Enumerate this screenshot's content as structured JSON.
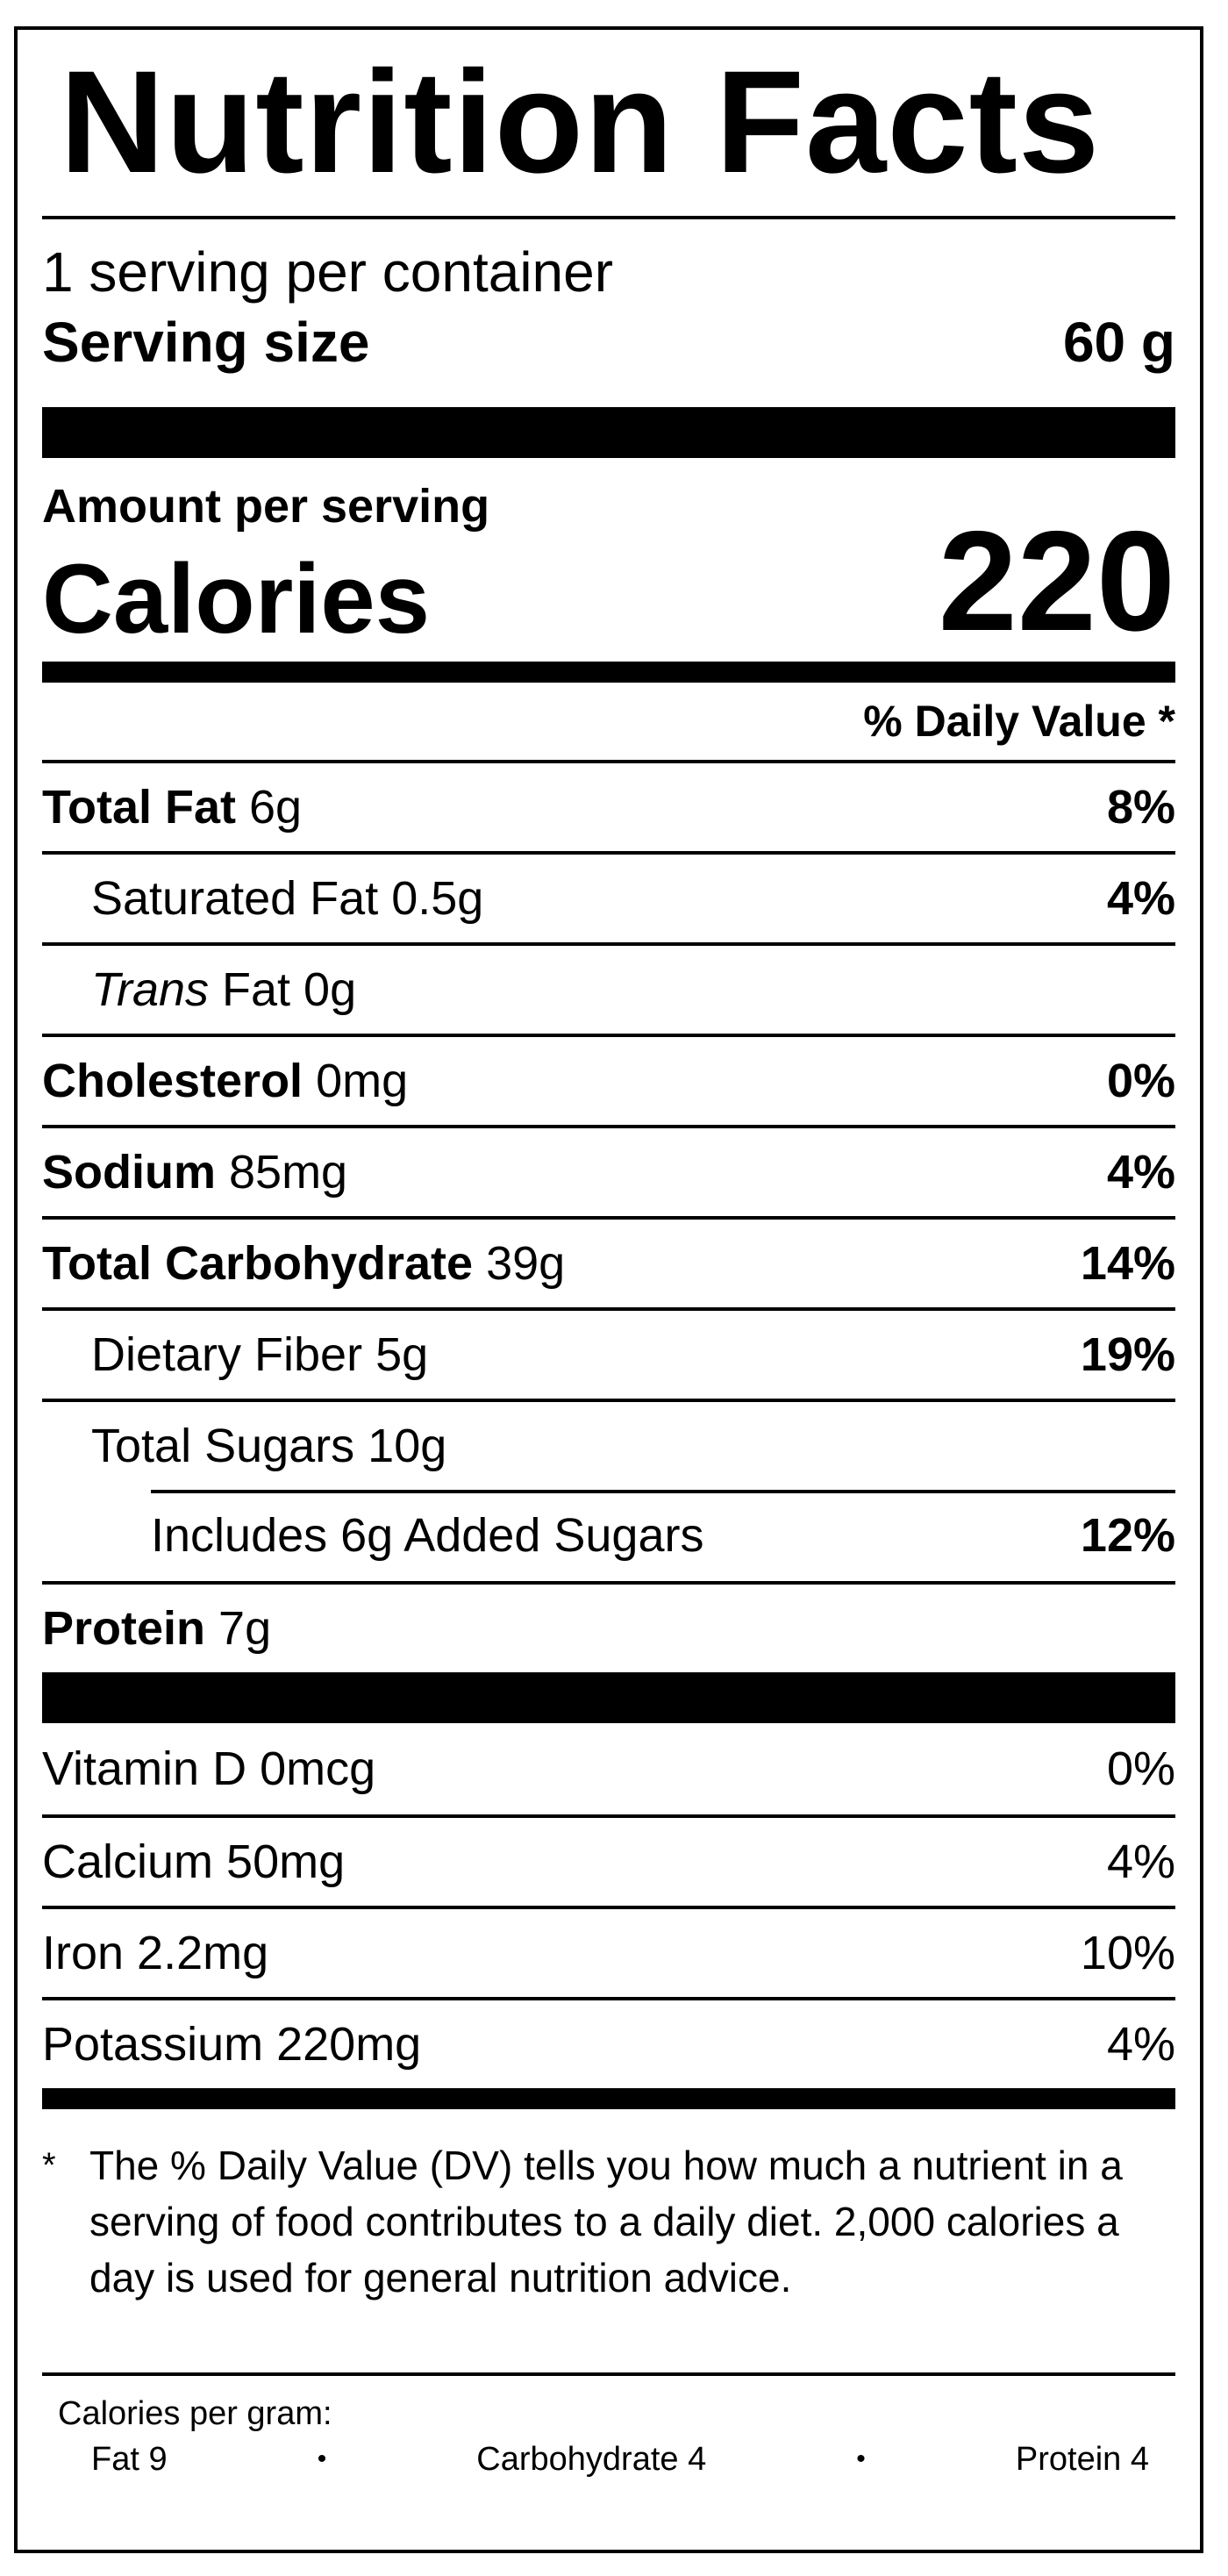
{
  "title": "Nutrition Facts",
  "servings_per_container": "1 serving per container",
  "serving_size": {
    "label": "Serving size",
    "value": "60 g"
  },
  "amount_per_serving": "Amount per serving",
  "calories": {
    "label": "Calories",
    "value": "220"
  },
  "daily_value_header": "% Daily Value *",
  "nutrients": [
    {
      "name": "Total Fat",
      "amount": " 6g",
      "dv": "8%"
    },
    {
      "name": "Saturated Fat 0.5g",
      "dv": "4%"
    },
    {
      "name_italic": "Trans",
      "name": " Fat 0g"
    },
    {
      "name": "Cholesterol",
      "amount": " 0mg",
      "dv": "0%"
    },
    {
      "name": "Sodium",
      "amount": " 85mg",
      "dv": "4%"
    },
    {
      "name": "Total Carbohydrate",
      "amount": " 39g",
      "dv": "14%"
    },
    {
      "name": "Dietary Fiber 5g",
      "dv": "19%"
    },
    {
      "name": "Total Sugars 10g"
    },
    {
      "name": "Includes 6g Added Sugars",
      "dv": "12%"
    },
    {
      "name": "Protein",
      "amount": " 7g"
    }
  ],
  "vitamins": [
    {
      "name": "Vitamin D 0mcg",
      "dv": "0%"
    },
    {
      "name": "Calcium 50mg",
      "dv": "4%"
    },
    {
      "name": "Iron 2.2mg",
      "dv": "10%"
    },
    {
      "name": "Potassium 220mg",
      "dv": "4%"
    }
  ],
  "footnote": {
    "symbol": "*",
    "text": "The % Daily Value (DV) tells you how much a nutrient in a serving of food contributes to a daily diet. 2,000 calories a day is used for general nutrition advice."
  },
  "calories_per_gram": {
    "label": "Calories per gram:",
    "fat": "Fat 9",
    "carbohydrate": "Carbohydrate 4",
    "protein": "Protein 4",
    "separator": "•"
  }
}
